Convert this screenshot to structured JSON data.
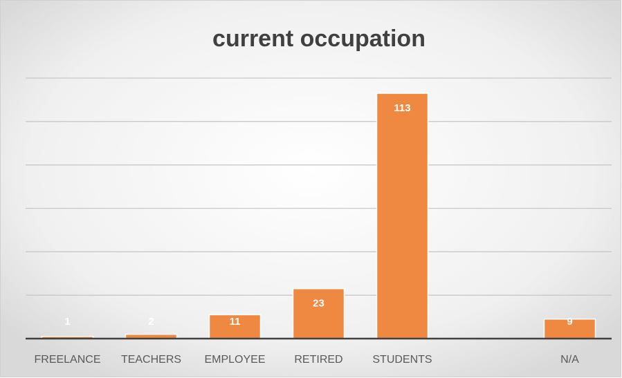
{
  "chart_data": {
    "type": "bar",
    "title": "current occupation",
    "categories": [
      "FREELANCE",
      "TEACHERS",
      "EMPLOYEE",
      "RETIRED",
      "STUDENTS",
      null,
      "N/A"
    ],
    "values": [
      1,
      2,
      11,
      23,
      113,
      null,
      9
    ],
    "color": "#ef8840",
    "ylim": [
      0,
      120
    ],
    "yticks": [
      0,
      20,
      40,
      60,
      80,
      100,
      120
    ],
    "grid": true
  }
}
